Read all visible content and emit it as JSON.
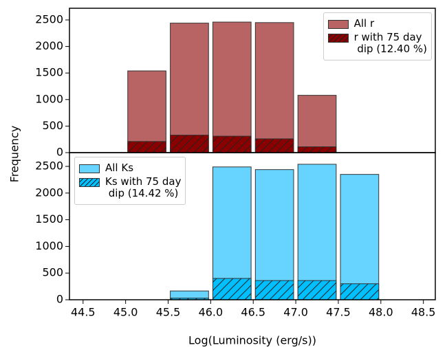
{
  "chart_data": [
    {
      "type": "histogram",
      "ylabel": "Frequency",
      "bins": [
        45.0,
        45.5,
        46.0,
        46.5,
        47.0,
        47.5
      ],
      "series": [
        {
          "name": "All r",
          "color": "#b86464",
          "values": [
            1540,
            2440,
            2460,
            2450,
            1080
          ]
        },
        {
          "name": "r with 75 day\n dip (12.40 %)",
          "color": "#8b0000",
          "hatch": true,
          "values": [
            210,
            330,
            310,
            260,
            110
          ]
        }
      ],
      "xlim": [
        44.34,
        48.64
      ],
      "ylim": [
        0,
        2720
      ],
      "yticks": [
        0,
        500,
        1000,
        1500,
        2000,
        2500
      ],
      "legend": "upper right"
    },
    {
      "type": "histogram",
      "xlabel": "Log(Luminosity (erg/s))",
      "bins": [
        45.5,
        46.0,
        46.5,
        47.0,
        47.5,
        48.0
      ],
      "series": [
        {
          "name": "All Ks",
          "color": "#66d4ff",
          "values": [
            165,
            2490,
            2440,
            2540,
            2350
          ]
        },
        {
          "name": "Ks with 75 day\n dip (14.42 %)",
          "color": "#00bfff",
          "hatch": true,
          "values": [
            30,
            400,
            360,
            360,
            300
          ]
        }
      ],
      "xlim": [
        44.34,
        48.64
      ],
      "xticks": [
        44.5,
        {
          "value": 45.0,
          "label": "45.0"
        },
        45.5,
        {
          "value": 46.0,
          "label": "46.0"
        },
        46.5,
        {
          "value": 47.0,
          "label": "47.0"
        },
        47.5,
        {
          "value": 48.0,
          "label": "48.0"
        },
        48.5
      ],
      "ylim": [
        0,
        2758
      ],
      "yticks": [
        0,
        500,
        1000,
        1500,
        2000,
        2500
      ],
      "legend": "upper left"
    }
  ]
}
